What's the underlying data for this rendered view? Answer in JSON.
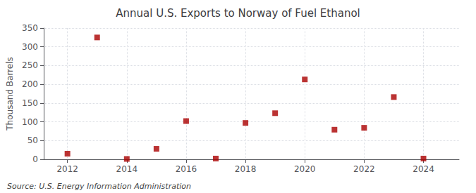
{
  "chart_data": {
    "type": "scatter",
    "title": "Annual U.S. Exports to Norway of Fuel Ethanol",
    "ylabel": "Thousand Barrels",
    "annotations": [
      "Source: U.S. Energy Information Administration"
    ],
    "x": [
      2012,
      2013,
      2014,
      2015,
      2016,
      2017,
      2018,
      2019,
      2020,
      2021,
      2022,
      2023,
      2024
    ],
    "values": [
      15,
      325,
      1,
      28,
      102,
      2,
      97,
      123,
      213,
      79,
      84,
      166,
      2
    ],
    "color": "#aa0000",
    "marker": "square",
    "xlim": [
      2011.2,
      2025.2
    ],
    "xticks": [
      2012,
      2014,
      2016,
      2018,
      2020,
      2022,
      2024
    ],
    "ylim": [
      0,
      350
    ],
    "yticks": [
      0,
      50,
      100,
      150,
      200,
      250,
      300,
      350
    ],
    "grid": true
  }
}
